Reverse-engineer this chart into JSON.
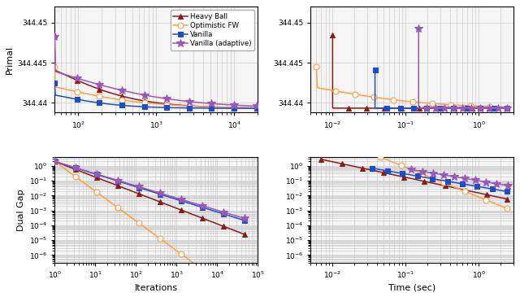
{
  "colors": {
    "heavy_ball": "#8B1A1A",
    "optimistic_fw": "#FFA040",
    "vanilla": "#1E4DCC",
    "vanilla_adaptive": "#9B59B6"
  },
  "legend_labels": [
    "Heavy Ball",
    "Optimistic FW",
    "Vanilla",
    "Vanilla (adaptive)"
  ],
  "primal_base": 344.4393,
  "primal_ylim": [
    344.4388,
    344.452
  ],
  "primal_yticks": [
    344.44,
    344.445,
    344.45
  ],
  "dual_ylim": [
    3e-07,
    4.0
  ],
  "iter_xlim_primal": [
    50,
    20000
  ],
  "iter_xlim_dual": [
    1,
    100000
  ],
  "time_xlim": [
    0.005,
    3.0
  ],
  "background": "#f5f5f5"
}
